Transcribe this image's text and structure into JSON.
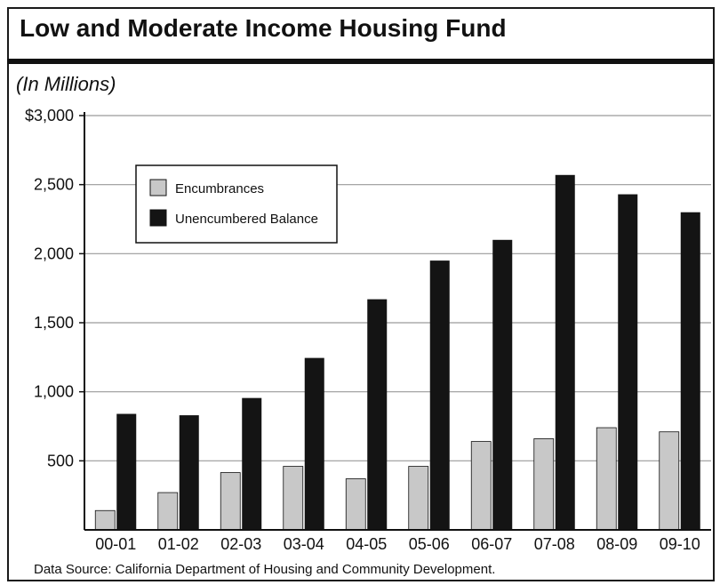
{
  "header": {
    "title": "Low and Moderate Income Housing Fund",
    "subtitle": "(In Millions)"
  },
  "footer": {
    "source": "Data Source: California Department of Housing and Community Development."
  },
  "colors": {
    "encumbrances": "#c8c8c8",
    "unencumbered": "#141414",
    "gridline": "#9a9a9a",
    "axis": "#111111"
  },
  "chart_data": {
    "type": "bar",
    "title": "Low and Moderate Income Housing Fund",
    "subtitle": "(In Millions)",
    "categories": [
      "00-01",
      "01-02",
      "02-03",
      "03-04",
      "04-05",
      "05-06",
      "06-07",
      "07-08",
      "08-09",
      "09-10"
    ],
    "series": [
      {
        "name": "Encumbrances",
        "values": [
          140,
          270,
          415,
          460,
          370,
          460,
          640,
          660,
          740,
          710
        ]
      },
      {
        "name": "Unencumbered Balance",
        "values": [
          840,
          830,
          955,
          1245,
          1670,
          1950,
          2100,
          2570,
          2430,
          2300
        ]
      }
    ],
    "ylim": [
      0,
      3000
    ],
    "yticks": [
      500,
      1000,
      1500,
      2000,
      2500,
      3000
    ],
    "ytick_labels": [
      "500",
      "1,000",
      "1,500",
      "2,000",
      "2,500",
      "$3,000"
    ],
    "xlabel": "",
    "ylabel": "",
    "grid": true,
    "legend_position": "top-left"
  }
}
